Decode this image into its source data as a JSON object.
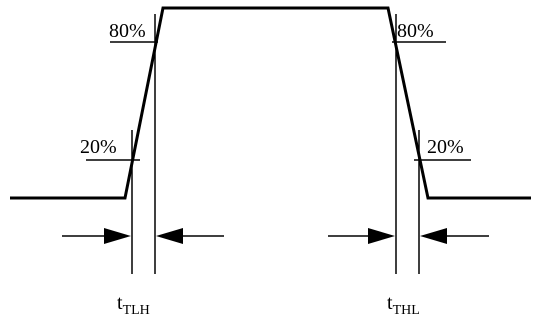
{
  "labels": {
    "left_80": "80%",
    "left_20": "20%",
    "right_80": "80%",
    "right_20": "20%",
    "tlh_main": "t",
    "tlh_sub": "TLH",
    "thl_main": "t",
    "thl_sub": "THL"
  },
  "colors": {
    "line": "#000000",
    "background": "#ffffff"
  }
}
